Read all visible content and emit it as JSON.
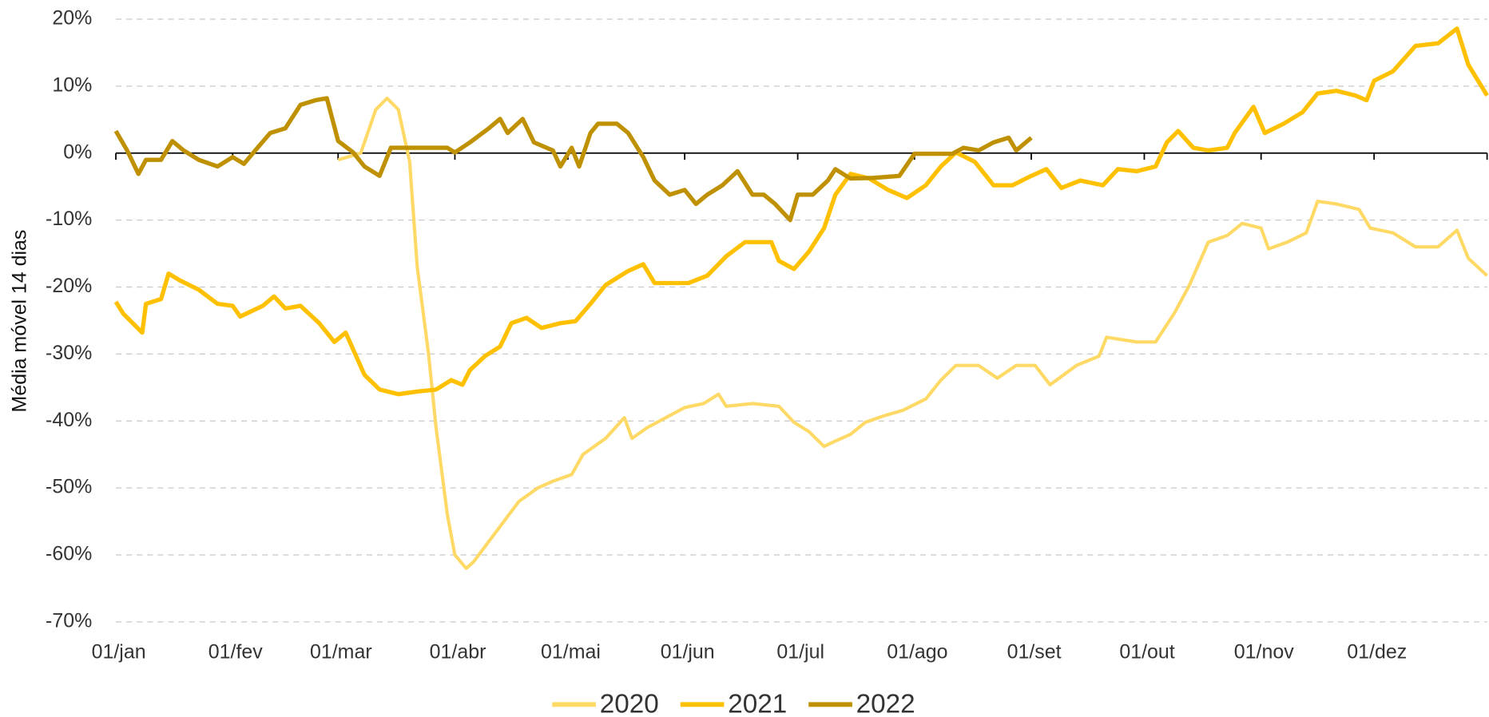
{
  "chart_data": {
    "type": "line",
    "y_label": "Média móvel 14 dias",
    "xlim": [
      0,
      364
    ],
    "xticks": [
      {
        "value": 0,
        "label": "01/jan"
      },
      {
        "value": 31,
        "label": "01/fev"
      },
      {
        "value": 59,
        "label": "01/mar"
      },
      {
        "value": 90,
        "label": "01/abr"
      },
      {
        "value": 120,
        "label": "01/mai"
      },
      {
        "value": 151,
        "label": "01/jun"
      },
      {
        "value": 181,
        "label": "01/jul"
      },
      {
        "value": 212,
        "label": "01/ago"
      },
      {
        "value": 243,
        "label": "01/set"
      },
      {
        "value": 273,
        "label": "01/out"
      },
      {
        "value": 304,
        "label": "01/nov"
      },
      {
        "value": 334,
        "label": "01/dez"
      }
    ],
    "ylim": [
      -70,
      20
    ],
    "yticks": [
      {
        "value": 20,
        "label": "20%"
      },
      {
        "value": 10,
        "label": "10%"
      },
      {
        "value": 0,
        "label": "0%"
      },
      {
        "value": -10,
        "label": "-10%"
      },
      {
        "value": -20,
        "label": "-20%"
      },
      {
        "value": -30,
        "label": "-30%"
      },
      {
        "value": -40,
        "label": "-40%"
      },
      {
        "value": -50,
        "label": "-50%"
      },
      {
        "value": -60,
        "label": "-60%"
      },
      {
        "value": -70,
        "label": "-70%"
      }
    ],
    "grid": true,
    "legend": "bottom",
    "series": [
      {
        "name": "2020",
        "color": "#ffd966",
        "x": [
          59,
          65,
          69,
          72,
          75,
          78,
          80,
          83,
          85,
          88,
          90,
          93,
          95,
          99,
          103,
          107,
          112,
          116,
          121,
          124,
          130,
          135,
          137,
          141,
          146,
          151,
          156,
          160,
          162,
          169,
          176,
          180,
          184,
          188,
          191,
          195,
          199,
          204,
          209,
          215,
          219,
          223,
          229,
          234,
          239,
          244,
          248,
          255,
          261,
          263,
          271,
          276,
          281,
          285,
          290,
          295,
          299,
          304,
          306,
          311,
          316,
          319,
          324,
          330,
          333,
          339,
          345,
          351,
          356,
          359,
          364
        ],
        "values": [
          -1,
          0,
          6.5,
          8.2,
          6.5,
          -1.3,
          -17,
          -30,
          -41,
          -54,
          -60,
          -62,
          -61,
          -58,
          -55,
          -52,
          -50,
          -49,
          -48,
          -45,
          -42.6,
          -39.5,
          -42.6,
          -41,
          -39.5,
          -38,
          -37.4,
          -36,
          -37.8,
          -37.4,
          -37.8,
          -40.2,
          -41.6,
          -43.8,
          -43,
          -42,
          -40.2,
          -39.2,
          -38.4,
          -36.7,
          -33.9,
          -31.7,
          -31.7,
          -33.6,
          -31.7,
          -31.7,
          -34.6,
          -31.7,
          -30.3,
          -27.5,
          -28.2,
          -28.2,
          -23.9,
          -19.7,
          -13.3,
          -12.3,
          -10.5,
          -11.2,
          -14.3,
          -13.3,
          -11.9,
          -7.2,
          -7.6,
          -8.4,
          -11.2,
          -11.9,
          -14,
          -14,
          -11.5,
          -15.7,
          -18.3
        ]
      },
      {
        "name": "2021",
        "color": "#ffc000",
        "x": [
          0,
          2,
          7,
          8,
          12,
          14,
          17,
          22,
          27,
          31,
          33,
          39,
          42,
          45,
          49,
          54,
          58,
          61,
          66,
          70,
          75,
          80,
          85,
          89,
          92,
          94,
          98,
          102,
          105,
          109,
          113,
          118,
          122,
          126,
          130,
          136,
          140,
          143,
          148,
          152,
          157,
          162,
          167,
          174,
          176,
          180,
          184,
          188,
          191,
          195,
          200,
          205,
          210,
          215,
          219,
          223,
          228,
          233,
          238,
          243,
          247,
          251,
          256,
          262,
          266,
          271,
          276,
          279,
          282,
          286,
          290,
          295,
          297,
          302,
          305,
          310,
          315,
          319,
          324,
          329,
          332,
          334,
          339,
          345,
          351,
          356,
          359,
          364
        ],
        "values": [
          -22.2,
          -24,
          -26.8,
          -22.5,
          -21.8,
          -18,
          -19,
          -20.4,
          -22.5,
          -22.8,
          -24.4,
          -22.8,
          -21.4,
          -23.2,
          -22.8,
          -25.4,
          -28.2,
          -26.8,
          -33.1,
          -35.3,
          -36,
          -35.6,
          -35.3,
          -33.9,
          -34.6,
          -32.4,
          -30.3,
          -28.9,
          -25.4,
          -24.6,
          -26.1,
          -25.4,
          -25.1,
          -22.5,
          -19.7,
          -17.6,
          -16.6,
          -19.4,
          -19.4,
          -19.4,
          -18.3,
          -15.4,
          -13.3,
          -13.3,
          -16.1,
          -17.3,
          -14.7,
          -11.2,
          -6.2,
          -3.1,
          -3.8,
          -5.5,
          -6.7,
          -4.8,
          -2,
          0.1,
          -1.3,
          -4.8,
          -4.8,
          -3.4,
          -2.4,
          -5.2,
          -4.1,
          -4.8,
          -2.4,
          -2.7,
          -2,
          1.6,
          3.3,
          0.8,
          0.4,
          0.8,
          3,
          6.9,
          3,
          4.4,
          6.1,
          8.9,
          9.3,
          8.6,
          7.9,
          10.8,
          12.2,
          16,
          16.4,
          18.6,
          13.2,
          8.6
        ]
      },
      {
        "name": "2022",
        "color": "#bf9000",
        "x": [
          0,
          3,
          6,
          8,
          12,
          15,
          18,
          22,
          27,
          31,
          34,
          37,
          41,
          45,
          49,
          53,
          56,
          59,
          63,
          66,
          70,
          73,
          78,
          83,
          88,
          90,
          94,
          99,
          102,
          104,
          108,
          111,
          116,
          118,
          121,
          123,
          126,
          128,
          133,
          136,
          140,
          143,
          147,
          151,
          154,
          157,
          161,
          165,
          169,
          172,
          175,
          179,
          181,
          185,
          189,
          191,
          195,
          201,
          208,
          212,
          217,
          222,
          225,
          229,
          233,
          237,
          239,
          243
        ],
        "values": [
          3.3,
          0.4,
          -3.1,
          -1,
          -1,
          1.8,
          0.4,
          -1,
          -2,
          -0.6,
          -1.6,
          0.4,
          3,
          3.7,
          7.2,
          7.9,
          8.2,
          1.8,
          0.1,
          -2,
          -3.4,
          0.8,
          0.8,
          0.8,
          0.8,
          0.1,
          1.6,
          3.7,
          5.1,
          3,
          5.1,
          1.6,
          0.4,
          -2,
          0.8,
          -2,
          3,
          4.4,
          4.4,
          3,
          -0.6,
          -4.1,
          -6.2,
          -5.5,
          -7.6,
          -6.2,
          -4.8,
          -2.7,
          -6.2,
          -6.2,
          -7.6,
          -10,
          -6.2,
          -6.2,
          -4.1,
          -2.4,
          -3.8,
          -3.7,
          -3.4,
          -0.1,
          -0.1,
          -0.1,
          0.8,
          0.4,
          1.6,
          2.3,
          0.4,
          2.3
        ]
      }
    ]
  }
}
